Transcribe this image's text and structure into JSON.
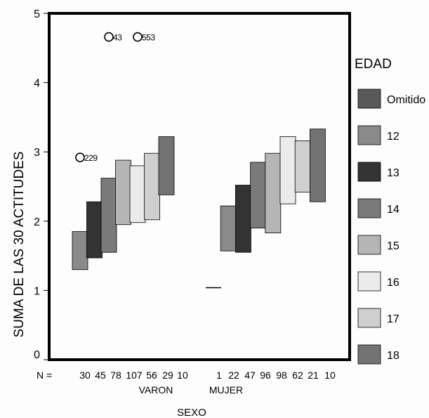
{
  "chart_data": {
    "type": "boxplot",
    "title": "",
    "xlabel": "SEXO",
    "ylabel": "SUMA DE LAS 30 ACTITUDES",
    "ylim": [
      0,
      5
    ],
    "yticks": [
      "0",
      "1",
      "2",
      "3",
      "4",
      "5"
    ],
    "grid": false,
    "legend_position": "right",
    "legend_title": "EDAD",
    "n_prefix": "N =",
    "groups": [
      {
        "label": "VARON",
        "boxes": [
          {
            "edad": "12",
            "n": "30",
            "q1": 1.3,
            "q3": 1.85
          },
          {
            "edad": "13",
            "n": "45",
            "q1": 1.47,
            "q3": 2.28
          },
          {
            "edad": "14",
            "n": "78",
            "q1": 1.55,
            "q3": 2.62
          },
          {
            "edad": "15",
            "n": "107",
            "q1": 1.95,
            "q3": 2.88
          },
          {
            "edad": "16",
            "n": "56",
            "q1": 1.98,
            "q3": 2.8
          },
          {
            "edad": "17",
            "n": "29",
            "q1": 2.02,
            "q3": 2.98
          },
          {
            "edad": "18",
            "n": "10",
            "q1": 2.38,
            "q3": 3.22
          }
        ]
      },
      {
        "label": "MUJER",
        "boxes": [
          {
            "edad": "Omitido",
            "n": "1",
            "q1": 1.04,
            "q3": 1.04
          },
          {
            "edad": "12",
            "n": "22",
            "q1": 1.57,
            "q3": 2.22
          },
          {
            "edad": "13",
            "n": "47",
            "q1": 1.55,
            "q3": 2.52
          },
          {
            "edad": "14",
            "n": "96",
            "q1": 1.9,
            "q3": 2.85
          },
          {
            "edad": "15",
            "n": "98",
            "q1": 1.83,
            "q3": 2.98
          },
          {
            "edad": "16",
            "n": "62",
            "q1": 2.25,
            "q3": 3.22
          },
          {
            "edad": "17",
            "n": "21",
            "q1": 2.42,
            "q3": 3.16
          },
          {
            "edad": "18",
            "n": "10",
            "q1": 2.28,
            "q3": 3.33
          }
        ]
      }
    ],
    "outliers": [
      {
        "label": "229",
        "group": "VARON",
        "edad": "12",
        "value": 2.92
      },
      {
        "label": "43",
        "group": "VARON",
        "edad": "14",
        "value": 4.66
      },
      {
        "label": "553",
        "group": "VARON",
        "edad": "16",
        "value": 4.66
      }
    ],
    "legend": [
      {
        "label": "Omitido",
        "color": "#595959"
      },
      {
        "label": "12",
        "color": "#8a8a8a"
      },
      {
        "label": "13",
        "color": "#333333"
      },
      {
        "label": "14",
        "color": "#7a7a7a"
      },
      {
        "label": "15",
        "color": "#b5b5b5"
      },
      {
        "label": "16",
        "color": "#ebebeb"
      },
      {
        "label": "17",
        "color": "#cfcfcf"
      },
      {
        "label": "18",
        "color": "#737373"
      }
    ]
  }
}
